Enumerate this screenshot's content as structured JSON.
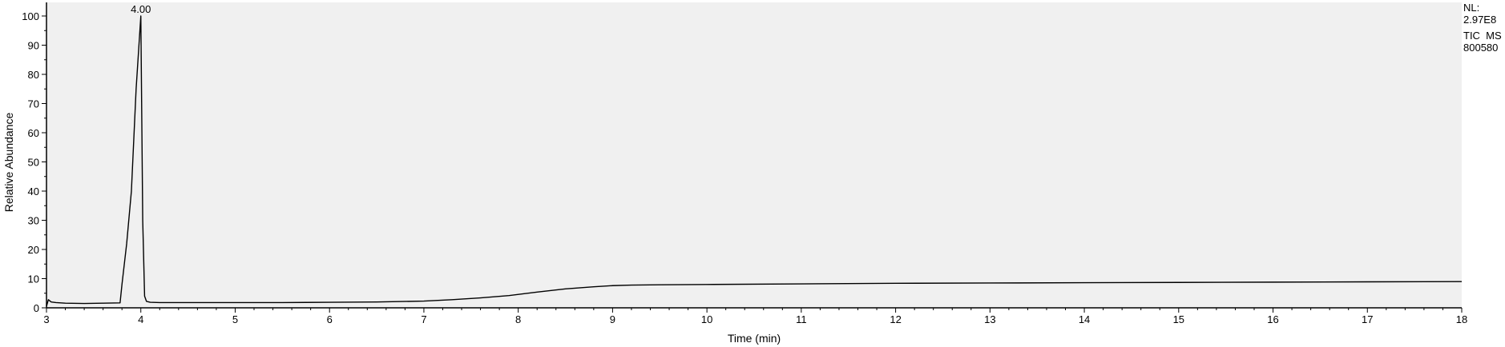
{
  "chart_data": {
    "type": "line",
    "xlabel": "Time (min)",
    "ylabel": "Relative Abundance",
    "xlim": [
      3,
      18
    ],
    "ylim": [
      0,
      100
    ],
    "x_ticks": [
      3,
      4,
      5,
      6,
      7,
      8,
      9,
      10,
      11,
      12,
      13,
      14,
      15,
      16,
      17,
      18
    ],
    "y_ticks": [
      0,
      10,
      20,
      30,
      40,
      50,
      60,
      70,
      80,
      90,
      100
    ],
    "grid": false,
    "background_color": "#f0f0f0",
    "line_color": "#000000",
    "peak_annotations": [
      {
        "x": 4.0,
        "y": 100,
        "label": "4.00"
      }
    ],
    "series": [
      {
        "x": [
          3.0,
          3.02,
          3.05,
          3.1,
          3.2,
          3.4,
          3.6,
          3.78,
          3.8,
          3.85,
          3.9,
          3.95,
          3.98,
          4.0,
          4.02,
          4.04,
          4.06,
          4.1,
          4.2,
          4.5,
          5.0,
          5.5,
          6.0,
          6.5,
          7.0,
          7.3,
          7.6,
          7.9,
          8.2,
          8.5,
          8.8,
          9.0,
          9.2,
          9.5,
          10.0,
          11.0,
          12.0,
          13.0,
          14.0,
          15.0,
          16.0,
          17.0,
          18.0
        ],
        "y": [
          0.5,
          2.8,
          2.0,
          1.8,
          1.6,
          1.5,
          1.6,
          1.7,
          8.0,
          22.0,
          40.0,
          75.0,
          90.0,
          100,
          30.0,
          4.0,
          2.2,
          1.9,
          1.8,
          1.8,
          1.8,
          1.8,
          1.9,
          2.0,
          2.3,
          2.8,
          3.4,
          4.2,
          5.4,
          6.5,
          7.2,
          7.6,
          7.8,
          7.9,
          8.0,
          8.2,
          8.4,
          8.5,
          8.6,
          8.7,
          8.8,
          8.9,
          9.0
        ]
      }
    ]
  },
  "info": {
    "nl_label": "NL:",
    "nl_value": "2.97E8",
    "scan_filter": "TIC  MS",
    "sample_id": "800580"
  }
}
